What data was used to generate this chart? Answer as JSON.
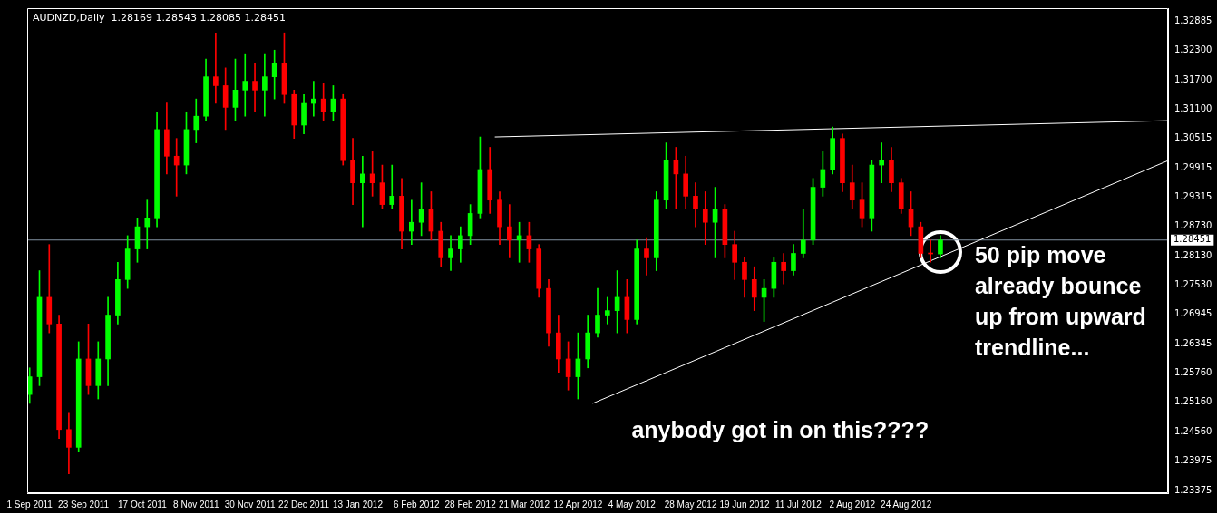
{
  "chart_data": {
    "type": "candlestick",
    "title": "AUDNZD,Daily  1.28169 1.28543 1.28085 1.28451",
    "x": [
      "2011-09-01",
      "2011-09-05",
      "2011-09-09",
      "2011-09-13",
      "2011-09-17",
      "2011-09-21",
      "2011-09-25",
      "2011-09-29",
      "2011-10-03",
      "2011-10-07",
      "2011-10-11",
      "2011-10-15",
      "2011-10-19",
      "2011-10-23",
      "2011-10-27",
      "2011-10-31",
      "2011-11-04",
      "2011-11-08",
      "2011-11-12",
      "2011-11-16",
      "2011-11-20",
      "2011-11-24",
      "2011-11-28",
      "2011-12-02",
      "2011-12-06",
      "2011-12-10",
      "2011-12-14",
      "2011-12-18",
      "2011-12-22",
      "2011-12-26",
      "2011-12-30",
      "2012-01-03",
      "2012-01-07",
      "2012-01-11",
      "2012-01-15",
      "2012-01-19",
      "2012-01-23",
      "2012-01-27",
      "2012-01-31",
      "2012-02-04",
      "2012-02-08",
      "2012-02-12",
      "2012-02-16",
      "2012-02-20",
      "2012-02-24",
      "2012-02-28",
      "2012-03-03",
      "2012-03-07",
      "2012-03-11",
      "2012-03-15",
      "2012-03-19",
      "2012-03-23",
      "2012-03-27",
      "2012-03-31",
      "2012-04-04",
      "2012-04-08",
      "2012-04-12",
      "2012-04-16",
      "2012-04-20",
      "2012-04-24",
      "2012-04-28",
      "2012-05-02",
      "2012-05-06",
      "2012-05-10",
      "2012-05-14",
      "2012-05-18",
      "2012-05-22",
      "2012-05-26",
      "2012-05-30",
      "2012-06-03",
      "2012-06-07",
      "2012-06-11",
      "2012-06-15",
      "2012-06-19",
      "2012-06-23",
      "2012-06-27",
      "2012-07-01",
      "2012-07-05",
      "2012-07-09",
      "2012-07-13",
      "2012-07-17",
      "2012-07-21",
      "2012-07-25",
      "2012-07-29",
      "2012-08-02",
      "2012-08-06",
      "2012-08-10",
      "2012-08-14",
      "2012-08-18",
      "2012-08-22",
      "2012-08-26",
      "2012-08-30",
      "2012-09-03",
      "2012-09-07"
    ],
    "ohlc": [
      [
        1.2532,
        1.2586,
        1.2514,
        1.2568
      ],
      [
        1.2568,
        1.2783,
        1.255,
        1.2729
      ],
      [
        1.2729,
        1.2836,
        1.2657,
        1.2675
      ],
      [
        1.2675,
        1.2693,
        1.2443,
        1.2461
      ],
      [
        1.2461,
        1.2496,
        1.2371,
        1.2425
      ],
      [
        1.2425,
        1.2639,
        1.2416,
        1.2604
      ],
      [
        1.2604,
        1.2675,
        1.2532,
        1.255
      ],
      [
        1.255,
        1.2639,
        1.2523,
        1.2604
      ],
      [
        1.2604,
        1.2729,
        1.255,
        1.2693
      ],
      [
        1.2693,
        1.28,
        1.2675,
        1.2765
      ],
      [
        1.2765,
        1.2854,
        1.2747,
        1.2827
      ],
      [
        1.2827,
        1.289,
        1.28,
        1.2872
      ],
      [
        1.2872,
        1.2926,
        1.2827,
        1.289
      ],
      [
        1.289,
        1.3105,
        1.2872,
        1.3069
      ],
      [
        1.3069,
        1.3123,
        1.2979,
        1.3015
      ],
      [
        1.3015,
        1.3051,
        1.2934,
        1.2997
      ],
      [
        1.2997,
        1.3105,
        1.2979,
        1.3069
      ],
      [
        1.3069,
        1.3131,
        1.3042,
        1.3096
      ],
      [
        1.3096,
        1.3212,
        1.3087,
        1.3176
      ],
      [
        1.3176,
        1.3265,
        1.3122,
        1.3158
      ],
      [
        1.3158,
        1.3194,
        1.3069,
        1.3114
      ],
      [
        1.3114,
        1.3212,
        1.3087,
        1.3149
      ],
      [
        1.3149,
        1.3221,
        1.3096,
        1.3167
      ],
      [
        1.3167,
        1.3203,
        1.3105,
        1.3149
      ],
      [
        1.3149,
        1.3221,
        1.3096,
        1.3176
      ],
      [
        1.3176,
        1.323,
        1.3131,
        1.3203
      ],
      [
        1.3203,
        1.3265,
        1.3122,
        1.314
      ],
      [
        1.314,
        1.3149,
        1.3051,
        1.3078
      ],
      [
        1.3078,
        1.314,
        1.306,
        1.3122
      ],
      [
        1.3122,
        1.3167,
        1.3096,
        1.3131
      ],
      [
        1.3131,
        1.3162,
        1.3087,
        1.3105
      ],
      [
        1.3105,
        1.3158,
        1.3087,
        1.3131
      ],
      [
        1.3131,
        1.314,
        1.2997,
        1.3006
      ],
      [
        1.3006,
        1.3051,
        1.2917,
        1.2961
      ],
      [
        1.2961,
        1.3015,
        1.2872,
        1.2979
      ],
      [
        1.2979,
        1.3024,
        1.2934,
        1.2961
      ],
      [
        1.2961,
        1.2997,
        1.2908,
        1.2917
      ],
      [
        1.2917,
        1.2997,
        1.2908,
        1.2934
      ],
      [
        1.2934,
        1.297,
        1.2827,
        1.2863
      ],
      [
        1.2863,
        1.2926,
        1.2836,
        1.2881
      ],
      [
        1.2881,
        1.2961,
        1.2854,
        1.2908
      ],
      [
        1.2908,
        1.2943,
        1.2845,
        1.2863
      ],
      [
        1.2863,
        1.2881,
        1.2791,
        1.2809
      ],
      [
        1.2809,
        1.2854,
        1.2783,
        1.2827
      ],
      [
        1.2827,
        1.2872,
        1.28,
        1.2854
      ],
      [
        1.2854,
        1.2917,
        1.2836,
        1.2899
      ],
      [
        1.2899,
        1.3054,
        1.289,
        1.2988
      ],
      [
        1.2988,
        1.3033,
        1.2899,
        1.2926
      ],
      [
        1.2926,
        1.2943,
        1.2836,
        1.2872
      ],
      [
        1.2872,
        1.2917,
        1.2809,
        1.2845
      ],
      [
        1.2845,
        1.2881,
        1.28,
        1.2854
      ],
      [
        1.2854,
        1.2881,
        1.28,
        1.2827
      ],
      [
        1.2827,
        1.2836,
        1.2729,
        1.2747
      ],
      [
        1.2747,
        1.2765,
        1.263,
        1.2657
      ],
      [
        1.2657,
        1.2693,
        1.2577,
        1.2604
      ],
      [
        1.2604,
        1.2639,
        1.2541,
        1.2568
      ],
      [
        1.2568,
        1.2657,
        1.2523,
        1.2604
      ],
      [
        1.2604,
        1.2693,
        1.2586,
        1.2657
      ],
      [
        1.2657,
        1.2747,
        1.2648,
        1.2693
      ],
      [
        1.2693,
        1.2729,
        1.2675,
        1.2702
      ],
      [
        1.2702,
        1.2783,
        1.2657,
        1.2729
      ],
      [
        1.2729,
        1.2765,
        1.2657,
        1.2684
      ],
      [
        1.2684,
        1.2845,
        1.2675,
        1.2827
      ],
      [
        1.2827,
        1.285,
        1.2774,
        1.2809
      ],
      [
        1.2809,
        1.2943,
        1.2783,
        1.2926
      ],
      [
        1.2926,
        1.3042,
        1.2908,
        1.3006
      ],
      [
        1.3006,
        1.3033,
        1.2908,
        1.2979
      ],
      [
        1.2979,
        1.3015,
        1.2908,
        1.2934
      ],
      [
        1.2934,
        1.2961,
        1.2872,
        1.2908
      ],
      [
        1.2908,
        1.2943,
        1.2836,
        1.2881
      ],
      [
        1.2881,
        1.2952,
        1.2809,
        1.2908
      ],
      [
        1.2908,
        1.2917,
        1.2809,
        1.2836
      ],
      [
        1.2836,
        1.2863,
        1.2765,
        1.28
      ],
      [
        1.28,
        1.2809,
        1.2729,
        1.2765
      ],
      [
        1.2765,
        1.2791,
        1.2702,
        1.2729
      ],
      [
        1.2729,
        1.2765,
        1.268,
        1.2747
      ],
      [
        1.2747,
        1.2809,
        1.2729,
        1.28
      ],
      [
        1.28,
        1.2818,
        1.2756,
        1.2783
      ],
      [
        1.2783,
        1.2836,
        1.2774,
        1.2818
      ],
      [
        1.2818,
        1.2908,
        1.2809,
        1.2845
      ],
      [
        1.2845,
        1.297,
        1.2836,
        1.2952
      ],
      [
        1.2952,
        1.3024,
        1.2934,
        1.2988
      ],
      [
        1.2988,
        1.3074,
        1.2979,
        1.3051
      ],
      [
        1.3051,
        1.306,
        1.2943,
        1.2961
      ],
      [
        1.2961,
        1.2997,
        1.2908,
        1.2926
      ],
      [
        1.2926,
        1.2961,
        1.2872,
        1.289
      ],
      [
        1.289,
        1.3006,
        1.2863,
        1.2997
      ],
      [
        1.2997,
        1.3042,
        1.2961,
        1.3006
      ],
      [
        1.3006,
        1.3033,
        1.2943,
        1.2961
      ],
      [
        1.2961,
        1.297,
        1.2899,
        1.2908
      ],
      [
        1.2908,
        1.2943,
        1.2854,
        1.2872
      ],
      [
        1.2872,
        1.2881,
        1.2809,
        1.2818
      ],
      [
        1.2818,
        1.2845,
        1.28,
        1.2817
      ],
      [
        1.28169,
        1.28543,
        1.28085,
        1.28451
      ]
    ],
    "series": [
      {
        "type": "line",
        "color": "#ffffff",
        "x": [
          "2012-03-09",
          "2012-12-09"
        ],
        "values": [
          1.3054,
          1.3087
        ]
      },
      {
        "type": "line",
        "color": "#ffffff",
        "x": [
          "2012-04-18",
          "2012-12-09"
        ],
        "values": [
          1.2514,
          1.3006
        ]
      }
    ],
    "xlim": [
      "2011-08-31",
      "2012-12-09"
    ],
    "xticks": [
      {
        "value": "2011-09-01",
        "label": "1 Sep 2011"
      },
      {
        "value": "2011-09-23",
        "label": "23 Sep 2011"
      },
      {
        "value": "2011-10-17",
        "label": "17 Oct 2011"
      },
      {
        "value": "2011-11-08",
        "label": "8 Nov 2011"
      },
      {
        "value": "2011-11-30",
        "label": "30 Nov 2011"
      },
      {
        "value": "2011-12-22",
        "label": "22 Dec 2011"
      },
      {
        "value": "2012-01-13",
        "label": "13 Jan 2012"
      },
      {
        "value": "2012-02-06",
        "label": "6 Feb 2012"
      },
      {
        "value": "2012-02-28",
        "label": "28 Feb 2012"
      },
      {
        "value": "2012-03-21",
        "label": "21 Mar 2012"
      },
      {
        "value": "2012-04-12",
        "label": "12 Apr 2012"
      },
      {
        "value": "2012-05-04",
        "label": "4 May 2012"
      },
      {
        "value": "2012-05-28",
        "label": "28 May 2012"
      },
      {
        "value": "2012-06-19",
        "label": "19 Jun 2012"
      },
      {
        "value": "2012-07-11",
        "label": "11 Jul 2012"
      },
      {
        "value": "2012-08-02",
        "label": "2 Aug 2012"
      },
      {
        "value": "2012-08-24",
        "label": "24 Aug 2012"
      }
    ],
    "ylim": [
      1.2332,
      1.3315
    ],
    "yticks": [
      1.32885,
      {
        "value": 1.323,
        "label": "1.32300"
      },
      {
        "value": 1.317,
        "label": "1.31700"
      },
      {
        "value": 1.311,
        "label": "1.31100"
      },
      1.30515,
      1.29915,
      1.29315,
      {
        "value": 1.2873,
        "label": "1.28730"
      },
      {
        "value": 1.2813,
        "label": "1.28130"
      },
      {
        "value": 1.2753,
        "label": "1.27530"
      },
      1.26945,
      1.26345,
      {
        "value": 1.2576,
        "label": "1.25760"
      },
      {
        "value": 1.2516,
        "label": "1.25160"
      },
      {
        "value": 1.2456,
        "label": "1.24560"
      },
      1.23975,
      1.23375
    ],
    "ref_lines": [
      {
        "axis": "y",
        "value": 1.28451,
        "label": "1.28451",
        "color": "#8090a0"
      }
    ],
    "annotations": [
      "50 pip move already bounce up from upward trendline...",
      "anybody got in on this????"
    ]
  }
}
